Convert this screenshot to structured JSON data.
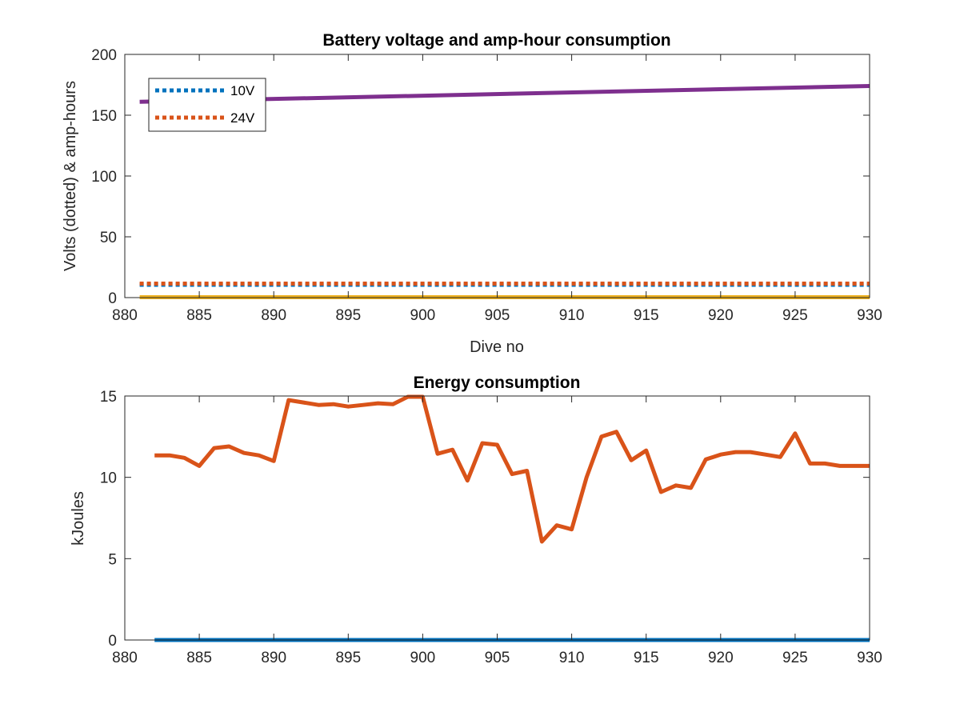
{
  "chart_data": [
    {
      "type": "line",
      "title": "Battery voltage and amp-hour consumption",
      "xlabel": "Dive no",
      "ylabel": "Volts (dotted) & amp-hours",
      "xlim": [
        880,
        930
      ],
      "ylim": [
        0,
        200
      ],
      "xticks": [
        880,
        885,
        890,
        895,
        900,
        905,
        910,
        915,
        920,
        925,
        930
      ],
      "yticks": [
        0,
        50,
        100,
        150,
        200
      ],
      "legend": {
        "placement": "top-left",
        "entries": [
          "10V",
          "24V"
        ]
      },
      "series": [
        {
          "name": "10V",
          "color": "#0072BD",
          "style": "dotted",
          "x": [
            881,
            930
          ],
          "y": [
            10.5,
            10.5
          ]
        },
        {
          "name": "24V",
          "color": "#D95319",
          "style": "dotted",
          "x": [
            881,
            930
          ],
          "y": [
            11.5,
            11.5
          ]
        },
        {
          "color": "#EDB120",
          "style": "solid",
          "x": [
            881,
            930
          ],
          "y": [
            0.3,
            0.3
          ]
        },
        {
          "color": "#7E2F8E",
          "style": "solid",
          "x": [
            881,
            930
          ],
          "y": [
            161,
            174
          ]
        }
      ]
    },
    {
      "type": "line",
      "title": "Energy consumption",
      "xlabel": "",
      "ylabel": "kJoules",
      "xlim": [
        880,
        930
      ],
      "ylim": [
        0,
        15
      ],
      "xticks": [
        880,
        885,
        890,
        895,
        900,
        905,
        910,
        915,
        920,
        925,
        930
      ],
      "yticks": [
        0,
        5,
        10,
        15
      ],
      "series": [
        {
          "color": "#0072BD",
          "style": "solid",
          "x": [
            882,
            930
          ],
          "y": [
            0,
            0
          ]
        },
        {
          "color": "#D95319",
          "style": "solid",
          "x": [
            882,
            883,
            884,
            885,
            886,
            887,
            888,
            889,
            890,
            891,
            892,
            893,
            894,
            895,
            896,
            897,
            898,
            899,
            900,
            901,
            902,
            903,
            904,
            905,
            906,
            907,
            908,
            909,
            910,
            911,
            912,
            913,
            914,
            915,
            916,
            917,
            918,
            919,
            920,
            921,
            922,
            923,
            924,
            925,
            926,
            927,
            928,
            929,
            930
          ],
          "y": [
            11.35,
            11.35,
            11.2,
            10.7,
            11.8,
            11.9,
            11.5,
            11.35,
            11.0,
            14.75,
            14.6,
            14.45,
            14.5,
            14.35,
            14.45,
            14.55,
            14.5,
            14.95,
            14.95,
            11.45,
            11.7,
            9.8,
            12.1,
            12.0,
            10.2,
            10.4,
            6.05,
            7.05,
            6.8,
            10.0,
            12.5,
            12.8,
            11.05,
            11.65,
            9.1,
            9.5,
            9.35,
            11.1,
            11.4,
            11.55,
            11.55,
            11.4,
            11.25,
            12.7,
            10.85,
            10.85,
            10.7,
            10.7,
            10.7
          ]
        }
      ]
    }
  ]
}
